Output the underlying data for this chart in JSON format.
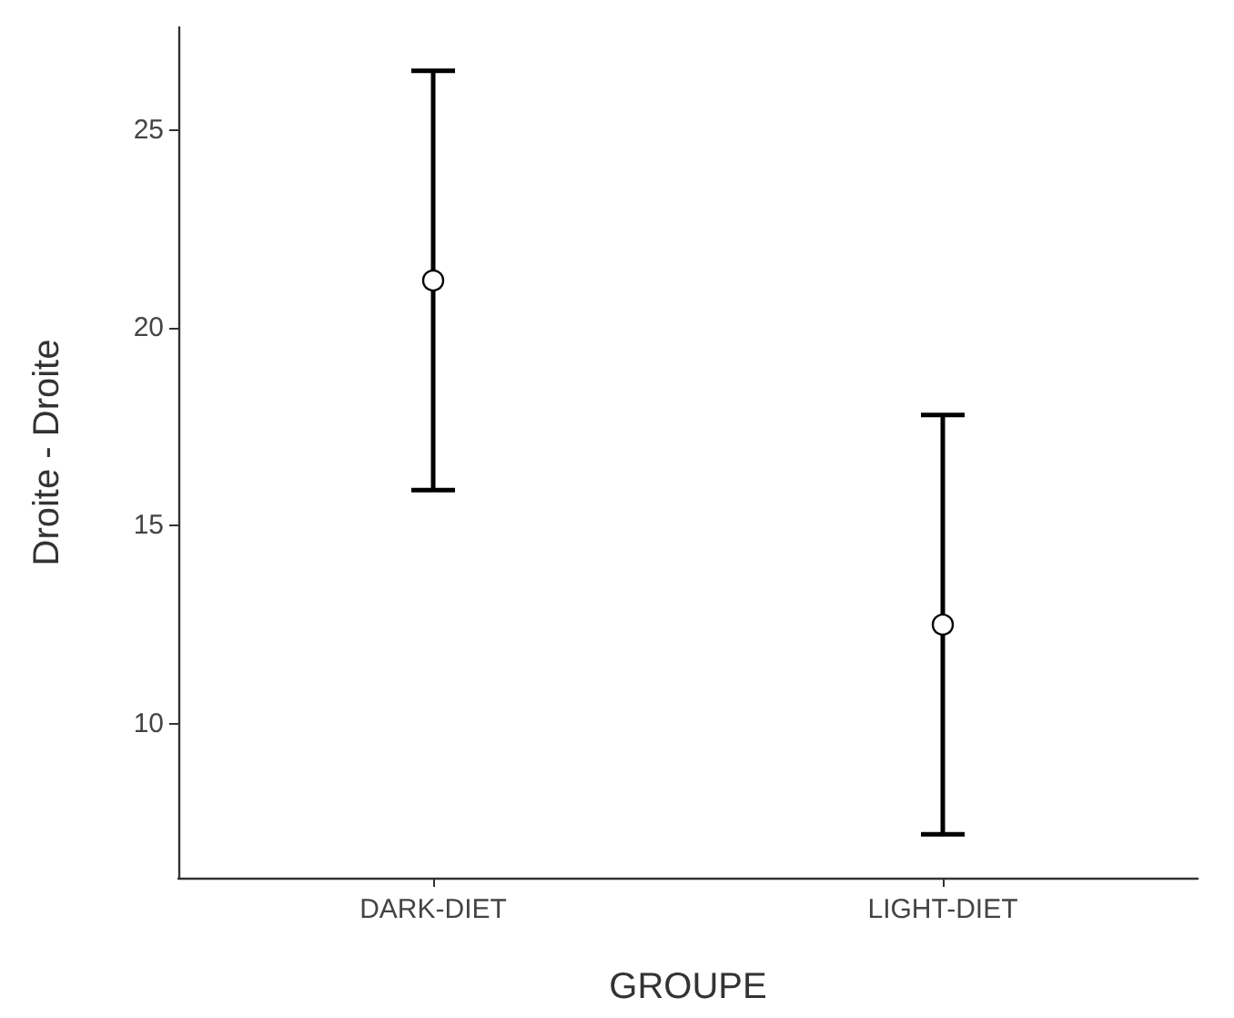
{
  "chart_data": {
    "type": "scatter",
    "xlabel": "GROUPE",
    "ylabel": "Droite - Droite",
    "categories": [
      "DARK-DIET",
      "LIGHT-DIET"
    ],
    "series": [
      {
        "color": "#000000",
        "values": [
          21.2,
          12.5
        ],
        "errors": [
          5.3,
          5.3
        ]
      }
    ],
    "ylim": [
      6.1,
      27.6
    ],
    "yticks": [
      10,
      15,
      20,
      25
    ],
    "grid": false,
    "marker": "circle"
  }
}
